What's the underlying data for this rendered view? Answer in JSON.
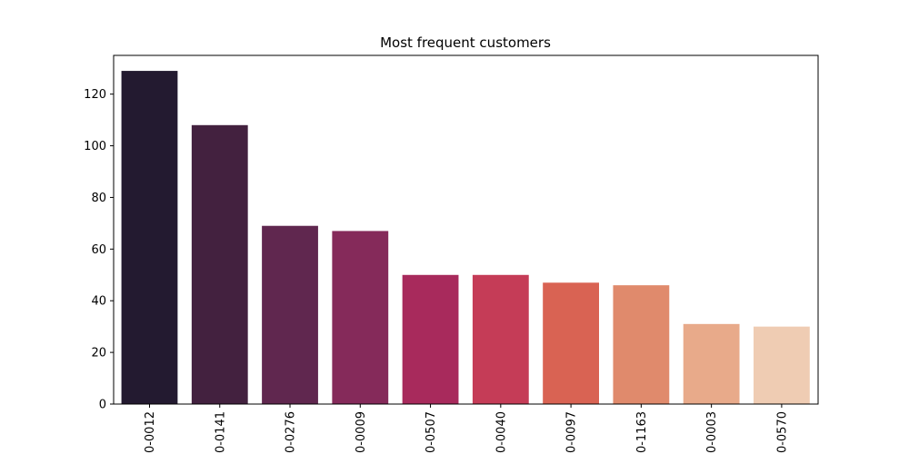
{
  "chart_data": {
    "type": "bar",
    "title": "Most frequent customers",
    "xlabel": "",
    "ylabel": "",
    "categories": [
      "0-0012",
      "0-0141",
      "0-0276",
      "0-0009",
      "0-0507",
      "0-0040",
      "0-0097",
      "0-1163",
      "0-0003",
      "0-0570"
    ],
    "values": [
      129,
      108,
      69,
      67,
      50,
      50,
      47,
      46,
      31,
      30
    ],
    "ylim": [
      0,
      135
    ],
    "yticks": [
      0,
      20,
      40,
      60,
      80,
      100,
      120
    ],
    "grid": false,
    "legend": "none",
    "colors": [
      "#231a30",
      "#43213f",
      "#60274f",
      "#852a5a",
      "#a82a5c",
      "#c53c57",
      "#d96353",
      "#e08a6c",
      "#e8aa8a",
      "#efccb3"
    ]
  }
}
